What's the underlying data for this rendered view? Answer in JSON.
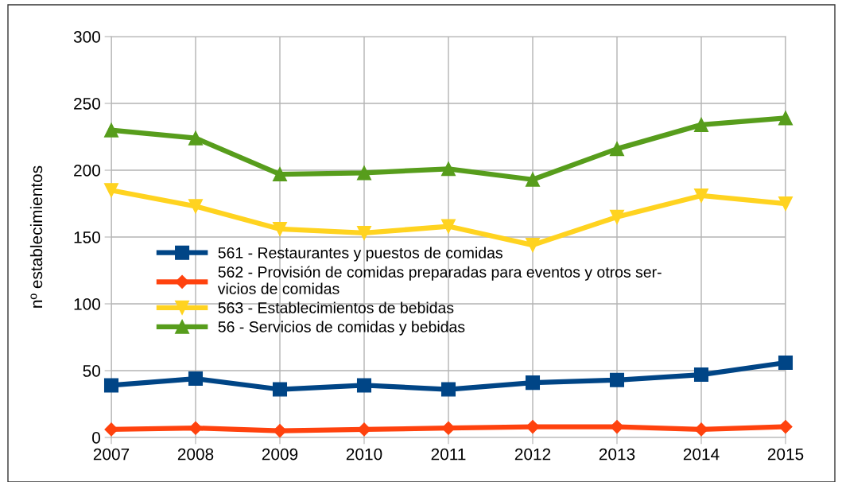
{
  "chart_data": {
    "type": "line",
    "ylabel": "nº establecimientos",
    "x": [
      2007,
      2008,
      2009,
      2010,
      2011,
      2012,
      2013,
      2014,
      2015
    ],
    "xlim": [
      2007,
      2015
    ],
    "xticks": [
      2007,
      2008,
      2009,
      2010,
      2011,
      2012,
      2013,
      2014,
      2015
    ],
    "ylim": [
      0,
      300
    ],
    "yticks": [
      0,
      50,
      100,
      150,
      200,
      250,
      300
    ],
    "grid": true,
    "legend": "center left",
    "series": [
      {
        "name": "561 - Restaurantes y puestos de comidas",
        "color": "#004586",
        "marker": "square",
        "values": [
          39,
          44,
          36,
          39,
          36,
          41,
          43,
          47,
          56
        ]
      },
      {
        "name": "562 - Provisión de comidas preparadas para eventos y otros ser-\nvicios de comidas",
        "color": "#ff420e",
        "marker": "diamond",
        "values": [
          6,
          7,
          5,
          6,
          7,
          8,
          8,
          6,
          8
        ]
      },
      {
        "name": "563 - Establecimientos de bebidas",
        "color": "#ffd320",
        "marker": "triangle_down",
        "values": [
          185,
          173,
          156,
          153,
          158,
          144,
          165,
          181,
          175
        ]
      },
      {
        "name": "56 - Servicios de comidas y bebidas",
        "color": "#579d1c",
        "marker": "triangle",
        "values": [
          230,
          224,
          197,
          198,
          201,
          193,
          216,
          234,
          239
        ]
      }
    ]
  }
}
